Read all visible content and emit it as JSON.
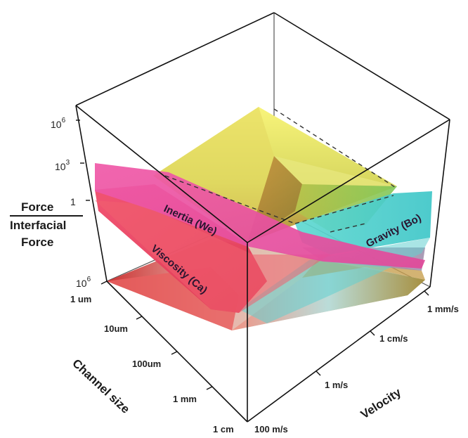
{
  "yaxis": {
    "ticks": [
      {
        "base": "10",
        "exp": "6"
      },
      {
        "base": "10",
        "exp": "3"
      },
      {
        "base": "1",
        "exp": ""
      },
      {
        "base": "10",
        "exp": "6"
      }
    ],
    "title_line1": "Force",
    "title_line2": "Interfacial",
    "title_line3": "Force"
  },
  "channel_axis": {
    "title": "Channel size",
    "ticks": [
      "1 um",
      "10um",
      "100um",
      "1 mm",
      "1 cm"
    ]
  },
  "velocity_axis": {
    "title": "Velocity",
    "ticks": [
      "100 m/s",
      "1 m/s",
      "1 cm/s",
      "1 mm/s"
    ]
  },
  "surfaces": {
    "inertia": {
      "label": "Inertia (We)",
      "color": "#e8409a"
    },
    "viscosity": {
      "label": "Viscosity (Ca)",
      "color": "#ee3a5e"
    },
    "gravity": {
      "label": "Gravity (Bo)",
      "color": "#4fd2cc"
    },
    "yellow_plane_color": "#f6f06a"
  }
}
